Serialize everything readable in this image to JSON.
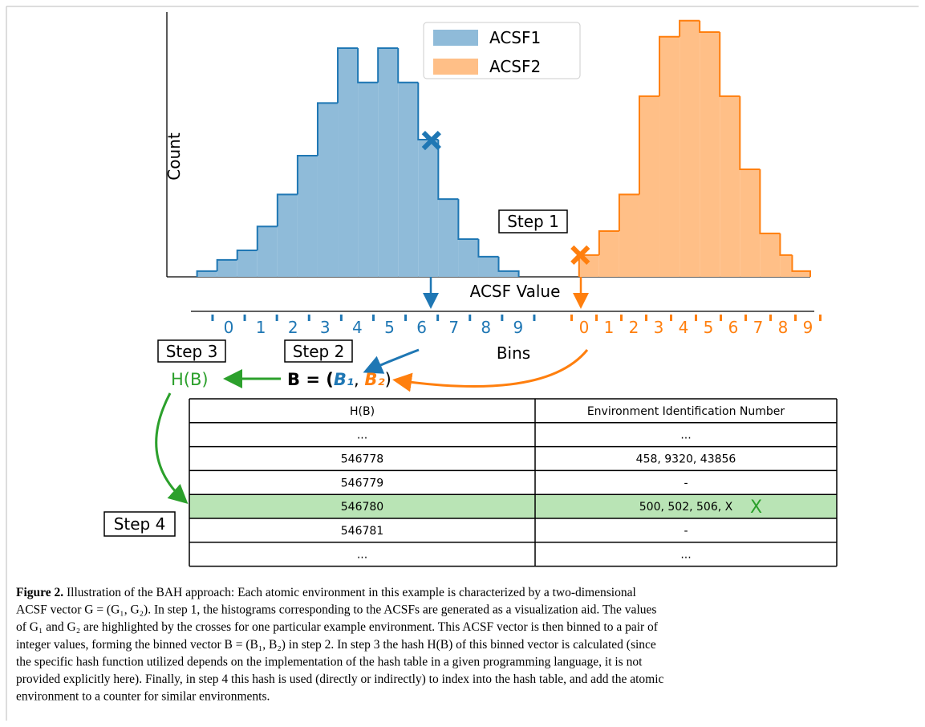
{
  "figure": {
    "histogram": {
      "xlim": [
        0,
        32
      ],
      "ylim": [
        0,
        120
      ],
      "ylabel": "Count",
      "xlabel": "ACSF Value",
      "step_label": "Step 1",
      "series": [
        {
          "name": "ACSF1",
          "color": "#1f77b4",
          "fill": "#8fbbd9",
          "bins": [
            1.5,
            2.5,
            3.5,
            4.5,
            5.5,
            6.5,
            7.5,
            8.5,
            9.5,
            10.5,
            11.5,
            12.5,
            13.5,
            14.5,
            15.5,
            16.5,
            17.5
          ],
          "counts": [
            2.5,
            7.4,
            11.6,
            22,
            36,
            53,
            76,
            100,
            85,
            100,
            85,
            60,
            34,
            16.5,
            8.8,
            2.5
          ]
        },
        {
          "name": "ACSF2",
          "color": "#ff7f0e",
          "fill": "#ffbf87",
          "bins": [
            20.5,
            21.5,
            22.5,
            23.5,
            24.5,
            25.5,
            26.5,
            27.5,
            28.5,
            29.5,
            30.5,
            31.1,
            32.0
          ],
          "counts": [
            9.5,
            20,
            36,
            79,
            105,
            112,
            107,
            79,
            47,
            19,
            9.5,
            2.5
          ]
        }
      ],
      "crosses": [
        {
          "x": 13.16,
          "y": 59.6,
          "color": "#1f77b4"
        },
        {
          "x": 20.56,
          "y": 9.5,
          "color": "#ff7f0e"
        }
      ]
    },
    "bin_axis": {
      "label": "Bins",
      "groups": [
        {
          "color": "#1f77b4",
          "labels": [
            0,
            1,
            2,
            3,
            4,
            5,
            6,
            7,
            8,
            9
          ]
        },
        {
          "color": "#ff7f0e",
          "labels": [
            0,
            1,
            2,
            3,
            4,
            5,
            6,
            7,
            8,
            9
          ]
        }
      ]
    },
    "steps": {
      "step2": "Step 2",
      "step3": "Step 3",
      "step4": "Step 4"
    },
    "formula_b": {
      "lhs": "B = (",
      "b1": "B₁",
      "sep": ", ",
      "b2": "B₂",
      "rhs": ")"
    },
    "formula_h": "H(B)",
    "table": {
      "header": [
        "H(B)",
        "Environment Identification Number"
      ],
      "rows": [
        [
          "...",
          "..."
        ],
        [
          "546778",
          "458, 9320, 43856"
        ],
        [
          "546779",
          "-"
        ],
        [
          "546780",
          "500, 502, 506, X"
        ],
        [
          "546781",
          "-"
        ],
        [
          "...",
          "..."
        ]
      ],
      "highlight_row": 3,
      "highlight_color": "#b9e4b5",
      "check_mark": "X"
    }
  },
  "caption": {
    "label": "Figure 2.",
    "lines": [
      " Illustration of the BAH approach: Each atomic environment in this example is characterized by a two-dimensional",
      "ACSF vector G = (G₁, G₂). In step 1, the histograms corresponding to the ACSFs are generated as a visualization aid. The values",
      "of G₁ and G₂ are highlighted by the crosses for one particular example environment. This ACSF vector is then binned to a pair of",
      "integer values, forming the binned vector B = (B₁, B₂) in step 2. In step 3 the hash H(B) of this binned vector is calculated (since",
      "the specific hash function utilized depends on the implementation of the hash table in a given programming language, it is not",
      "provided explicitly here). Finally, in step 4 this hash is used (directly or indirectly) to index into the hash table, and add the atomic",
      "environment to a counter for similar environments."
    ]
  }
}
